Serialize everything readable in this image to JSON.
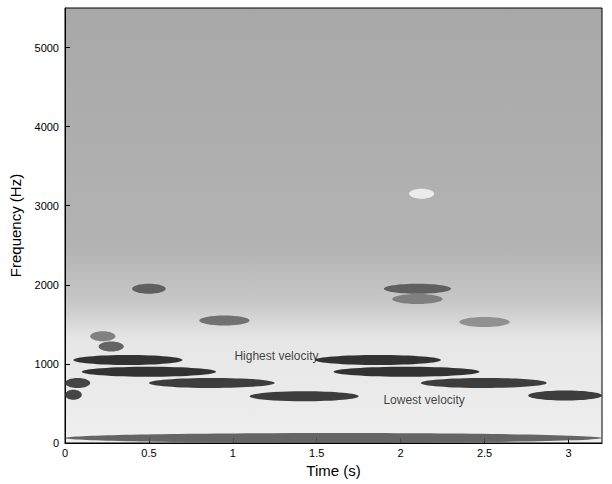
{
  "chart_data": {
    "type": "spectrogram",
    "x_label": "Time (s)",
    "y_label": "Frequency (Hz)",
    "xlim": [
      0,
      3.2
    ],
    "xticks": [
      0,
      0.5,
      1,
      1.5,
      2,
      2.5,
      3
    ],
    "ylim": [
      0,
      5500
    ],
    "yticks": [
      0,
      1000,
      2000,
      3000,
      4000,
      5000
    ],
    "grid": false,
    "streaks": [
      {
        "t": [
          0.05,
          0.7
        ],
        "f": 1050,
        "color": "#1e1e1e"
      },
      {
        "t": [
          0.1,
          0.9
        ],
        "f": 900,
        "color": "#1e1e1e"
      },
      {
        "t": [
          0.5,
          1.25
        ],
        "f": 760,
        "color": "#2a2a2a"
      },
      {
        "t": [
          1.1,
          1.75
        ],
        "f": 590,
        "color": "#2a2a2a"
      },
      {
        "t": [
          0.0,
          0.15
        ],
        "f": 760,
        "color": "#333333"
      },
      {
        "t": [
          0.0,
          0.1
        ],
        "f": 610,
        "color": "#333333"
      },
      {
        "t": [
          1.49,
          2.24
        ],
        "f": 1050,
        "color": "#1e1e1e"
      },
      {
        "t": [
          1.6,
          2.47
        ],
        "f": 900,
        "color": "#1e1e1e"
      },
      {
        "t": [
          2.12,
          2.87
        ],
        "f": 760,
        "color": "#2a2a2a"
      },
      {
        "t": [
          2.76,
          3.2
        ],
        "f": 600,
        "color": "#2a2a2a"
      },
      {
        "t": [
          0.0,
          3.2
        ],
        "f": 64,
        "color": "#555555"
      },
      {
        "t": [
          0.15,
          0.3
        ],
        "f": 1350,
        "color": "#777777"
      },
      {
        "t": [
          0.2,
          0.35
        ],
        "f": 1220,
        "color": "#555555"
      },
      {
        "t": [
          0.4,
          0.6
        ],
        "f": 1950,
        "color": "#555555"
      },
      {
        "t": [
          0.8,
          1.1
        ],
        "f": 1550,
        "color": "#666666"
      },
      {
        "t": [
          1.9,
          2.3
        ],
        "f": 1950,
        "color": "#555555"
      },
      {
        "t": [
          1.95,
          2.25
        ],
        "f": 1820,
        "color": "#777777"
      },
      {
        "t": [
          2.35,
          2.65
        ],
        "f": 1530,
        "color": "#888888"
      },
      {
        "t": [
          2.05,
          2.2
        ],
        "f": 3150,
        "color": "#f2f2f2"
      }
    ],
    "annotations": [
      {
        "text": "Highest velocity",
        "x": 1.26,
        "y": 1100
      },
      {
        "text": "Lowest velocity",
        "x": 2.14,
        "y": 550
      }
    ]
  }
}
